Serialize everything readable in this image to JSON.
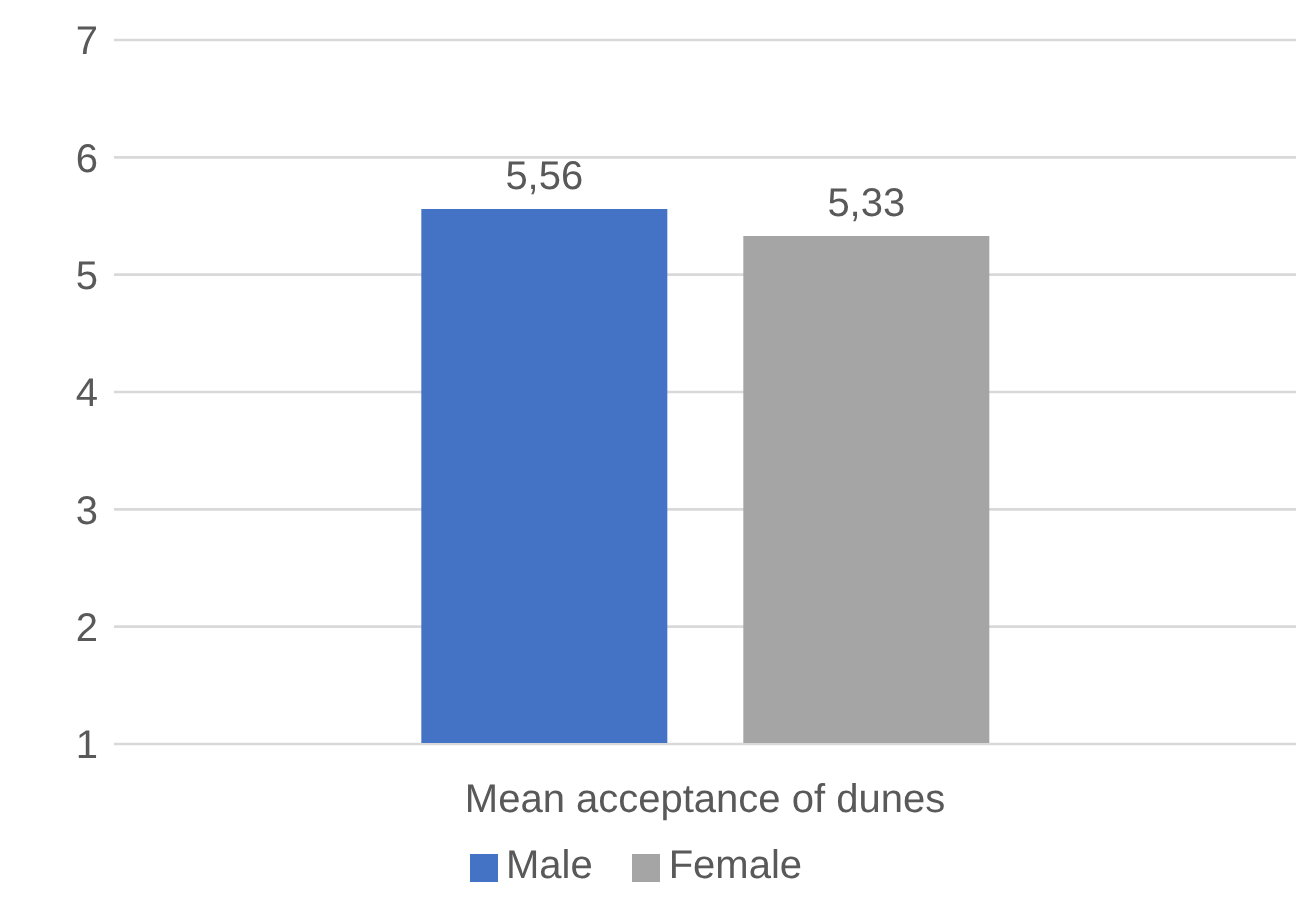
{
  "chart_data": {
    "type": "bar",
    "categories": [
      "Mean acceptance of dunes"
    ],
    "series": [
      {
        "name": "Male",
        "color": "#4472c4",
        "values": [
          5.56
        ],
        "value_labels": [
          "5,56"
        ]
      },
      {
        "name": "Female",
        "color": "#a5a5a5",
        "values": [
          5.33
        ],
        "value_labels": [
          "5,33"
        ]
      }
    ],
    "ylim": [
      1,
      7
    ],
    "yticks": [
      1,
      2,
      3,
      4,
      5,
      6,
      7
    ],
    "grid": "y",
    "legend": "bottom"
  }
}
